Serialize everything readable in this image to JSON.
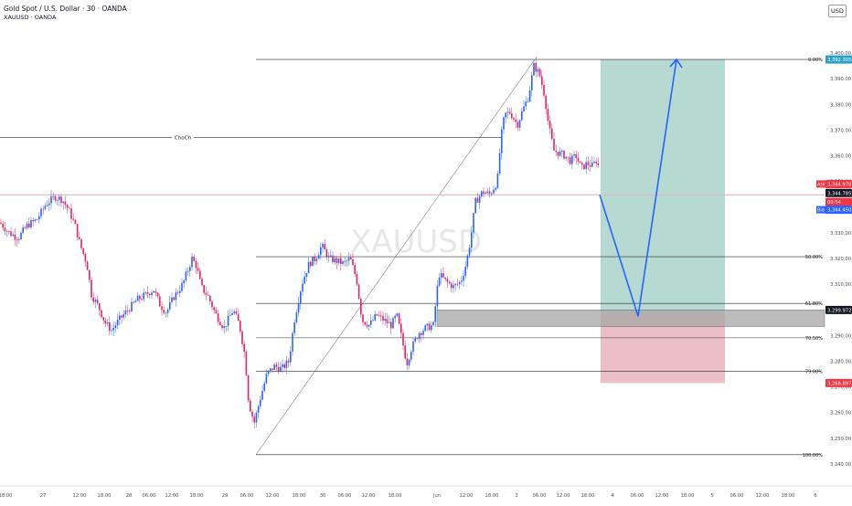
{
  "header": {
    "title": "Gold Spot / U.S. Dollar · 30 · OANDA",
    "subtitle": "XAUUSD · OANDA",
    "currency": "USD"
  },
  "watermark": "XAUUSD",
  "chart_data": {
    "type": "candlestick",
    "symbol": "XAUUSD",
    "timeframe": "30",
    "ylim": [
      3235,
      3405
    ],
    "y_ticks": [
      "3,400.00",
      "3,390.00",
      "3,380.00",
      "3,370.00",
      "3,360.00",
      "3,350.00",
      "3,340.00",
      "3,330.00",
      "3,320.00",
      "3,310.00",
      "3,300.00",
      "3,290.00",
      "3,280.00",
      "3,270.00",
      "3,260.00",
      "3,250.00",
      "3,240.00"
    ],
    "x_ticks": [
      "18:00",
      "27",
      "12:00",
      "18:00",
      "28",
      "06:00",
      "12:00",
      "18:00",
      "29",
      "06:00",
      "12:00",
      "18:00",
      "30",
      "06:00",
      "12:00",
      "18:00",
      "Jun",
      "12:00",
      "18:00",
      "3",
      "06:00",
      "12:00",
      "18:00",
      "4",
      "06:00",
      "12:00",
      "18:00",
      "5",
      "06:00",
      "12:00",
      "18:00",
      "6"
    ],
    "price_path": [
      [
        0,
        3334
      ],
      [
        10,
        3330
      ],
      [
        20,
        3328
      ],
      [
        30,
        3333
      ],
      [
        40,
        3335
      ],
      [
        50,
        3341
      ],
      [
        60,
        3344
      ],
      [
        68,
        3343
      ],
      [
        75,
        3339
      ],
      [
        82,
        3333
      ],
      [
        88,
        3325
      ],
      [
        95,
        3318
      ],
      [
        100,
        3306
      ],
      [
        108,
        3301
      ],
      [
        115,
        3295
      ],
      [
        122,
        3292
      ],
      [
        130,
        3296
      ],
      [
        140,
        3300
      ],
      [
        150,
        3304
      ],
      [
        160,
        3306
      ],
      [
        168,
        3308
      ],
      [
        175,
        3302
      ],
      [
        182,
        3299
      ],
      [
        190,
        3305
      ],
      [
        200,
        3310
      ],
      [
        210,
        3320
      ],
      [
        215,
        3317
      ],
      [
        220,
        3309
      ],
      [
        228,
        3305
      ],
      [
        235,
        3299
      ],
      [
        245,
        3293
      ],
      [
        255,
        3300
      ],
      [
        262,
        3294
      ],
      [
        268,
        3282
      ],
      [
        272,
        3264
      ],
      [
        278,
        3256
      ],
      [
        285,
        3266
      ],
      [
        292,
        3275
      ],
      [
        300,
        3278
      ],
      [
        308,
        3277
      ],
      [
        316,
        3280
      ],
      [
        322,
        3296
      ],
      [
        330,
        3310
      ],
      [
        338,
        3318
      ],
      [
        345,
        3320
      ],
      [
        352,
        3325
      ],
      [
        360,
        3320
      ],
      [
        368,
        3319
      ],
      [
        376,
        3318
      ],
      [
        383,
        3320
      ],
      [
        390,
        3312
      ],
      [
        396,
        3296
      ],
      [
        404,
        3294
      ],
      [
        412,
        3298
      ],
      [
        420,
        3296
      ],
      [
        428,
        3294
      ],
      [
        434,
        3298
      ],
      [
        440,
        3288
      ],
      [
        445,
        3279
      ],
      [
        450,
        3285
      ],
      [
        458,
        3291
      ],
      [
        466,
        3293
      ],
      [
        474,
        3294
      ],
      [
        480,
        3314
      ],
      [
        488,
        3311
      ],
      [
        496,
        3309
      ],
      [
        504,
        3311
      ],
      [
        510,
        3318
      ],
      [
        515,
        3328
      ],
      [
        520,
        3342
      ],
      [
        528,
        3346
      ],
      [
        536,
        3345
      ],
      [
        544,
        3350
      ],
      [
        548,
        3367
      ],
      [
        552,
        3376
      ],
      [
        558,
        3377
      ],
      [
        566,
        3372
      ],
      [
        572,
        3378
      ],
      [
        578,
        3383
      ],
      [
        584,
        3395
      ],
      [
        590,
        3392
      ],
      [
        596,
        3383
      ],
      [
        600,
        3372
      ],
      [
        606,
        3362
      ],
      [
        612,
        3361
      ],
      [
        618,
        3360
      ],
      [
        624,
        3358
      ],
      [
        630,
        3360
      ],
      [
        636,
        3355
      ],
      [
        642,
        3357
      ],
      [
        648,
        3356
      ],
      [
        654,
        3359
      ],
      [
        656,
        3344.785
      ]
    ],
    "fib_levels": [
      {
        "label": "0.00%",
        "price": 3397.5
      },
      {
        "label": "61.80%",
        "price": 3302.5
      },
      {
        "label": "50.00%",
        "price": 3320.7
      },
      {
        "label": "70.50%",
        "price": 3289.1
      },
      {
        "label": "79.00%",
        "price": 3276.0
      },
      {
        "label": "100.00%",
        "price": 3243.6
      }
    ],
    "choch": {
      "label": "ChoCh",
      "price": 3367.2
    },
    "position": {
      "type": "long",
      "entry": 3298.5,
      "target": 3397.5,
      "stop": 3271.5
    },
    "zone": {
      "from": 3293.5,
      "to": 3299.972
    },
    "forecast_path": [
      [
        656,
        3344.785
      ],
      [
        698,
        3297.5
      ],
      [
        740,
        3397.5
      ]
    ],
    "price_labels": [
      {
        "text": "3,392.305",
        "color": "#2aa0c7"
      },
      {
        "text": "Ask",
        "color": "#f23645"
      },
      {
        "text": "3,344.970",
        "color": "#f23645"
      },
      {
        "text": "3,344.785",
        "color": "#131722"
      },
      {
        "text": "00:54",
        "color": "#f23645"
      },
      {
        "text": "Bid",
        "color": "#2962ff"
      },
      {
        "text": "3,344.450",
        "color": "#2962ff"
      },
      {
        "text": "3,299.972",
        "color": "#131722"
      },
      {
        "text": "3,268.897",
        "color": "#f23645"
      }
    ],
    "current_price": 3344.785
  },
  "colors": {
    "up": "#2962ff",
    "down": "#e0245e",
    "target_zone": "#b2d8cf",
    "stop_zone": "#ebbcc3",
    "zone": "#a6a6a6",
    "forecast": "#2962ff",
    "level_line": "#2b2b2b",
    "price_line": "#d9b8c1"
  }
}
